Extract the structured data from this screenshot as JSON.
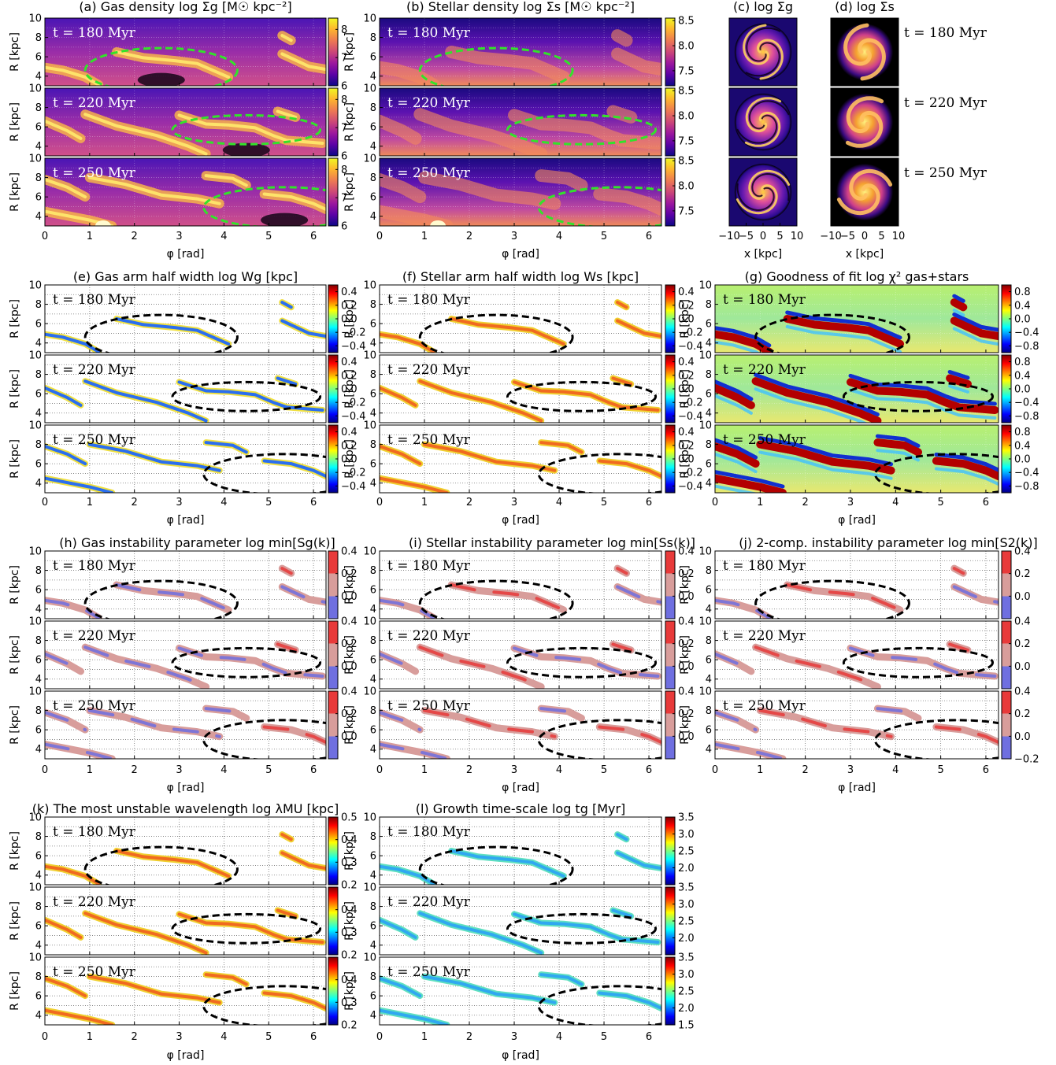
{
  "chart_data": {
    "type": "heatmap",
    "time_labels": [
      "t = 180 Myr",
      "t = 220 Myr",
      "t = 250 Myr"
    ],
    "phi_axis": {
      "label": "φ [rad]",
      "ticks": [
        "0",
        "1",
        "2",
        "3",
        "4",
        "5",
        "6"
      ],
      "range": [
        0,
        6.28
      ]
    },
    "R_axis": {
      "label": "R [kpc]",
      "ticks": [
        "4",
        "6",
        "8",
        "10"
      ],
      "range": [
        3,
        10
      ]
    },
    "xy_axis": {
      "label": "x [kpc]",
      "ticks": [
        "−10",
        "−5",
        "0",
        "5",
        "10"
      ]
    },
    "panels": [
      {
        "id": "a",
        "title": "(a) Gas density log Σg [M☉ kpc⁻²]",
        "style": "gas",
        "ellipse": "lime",
        "cbar": {
          "cmap": "plasma",
          "ticks": [
            "6",
            "7",
            "8"
          ],
          "range": [
            6,
            8.4
          ]
        }
      },
      {
        "id": "b",
        "title": "(b) Stellar density log Σs [M☉ kpc⁻²]",
        "style": "star",
        "ellipse": "lime",
        "cbar": {
          "cmap": "plasma",
          "ticks": [
            "7.5",
            "8.0",
            "8.5"
          ],
          "range": [
            7.2,
            8.55
          ]
        }
      },
      {
        "id": "c",
        "title": "(c) log Σg",
        "style": "disk_gas"
      },
      {
        "id": "d",
        "title": "(d) log Σs",
        "style": "disk_star"
      },
      {
        "id": "e",
        "title": "(e) Gas arm half width log Wg [kpc]",
        "style": "arm_jet",
        "ellipse": "black",
        "cbar": {
          "cmap": "jet",
          "ticks": [
            "−0.4",
            "−0.2",
            "0.0",
            "0.2",
            "0.4"
          ],
          "range": [
            -0.5,
            0.5
          ]
        }
      },
      {
        "id": "f",
        "title": "(f) Stellar arm half width log Ws [kpc]",
        "style": "arm_jet",
        "ellipse": "black",
        "cbar": {
          "cmap": "jet",
          "ticks": [
            "−0.4",
            "−0.2",
            "0.0",
            "0.2",
            "0.4"
          ],
          "range": [
            -0.5,
            0.5
          ]
        }
      },
      {
        "id": "g",
        "title": "(g) Goodness of fit log χ² gas+stars",
        "style": "chi",
        "ellipse": "black",
        "cbar": {
          "cmap": "jet",
          "ticks": [
            "−0.8",
            "−0.4",
            "0.0",
            "0.4",
            "0.8"
          ],
          "range": [
            -1,
            1
          ]
        }
      },
      {
        "id": "h",
        "title": "(h) Gas instability parameter log min[Sg(k)]",
        "style": "arm_disc",
        "ellipse": "black",
        "cbar": {
          "cmap": "discrete",
          "ticks": [
            "0.0",
            "0.2",
            "0.4"
          ],
          "range": [
            -0.2,
            0.4
          ]
        }
      },
      {
        "id": "i",
        "title": "(i) Stellar instability parameter log min[Ss(k)]",
        "style": "arm_disc",
        "ellipse": "black",
        "cbar": {
          "cmap": "discrete",
          "ticks": [
            "0.0",
            "0.2",
            "0.4"
          ],
          "range": [
            -0.2,
            0.4
          ]
        }
      },
      {
        "id": "j",
        "title": "(j) 2-comp. instability parameter log min[S2(k)]",
        "style": "arm_disc",
        "ellipse": "black",
        "cbar": {
          "cmap": "discrete",
          "ticks": [
            "0.0",
            "0.2",
            "0.4"
          ],
          "ticks_bottom": [
            "−0.2",
            "0.0",
            "0.2",
            "0.4"
          ],
          "range": [
            -0.2,
            0.4
          ]
        }
      },
      {
        "id": "k",
        "title": "(k) The most unstable wavelength log λMU [kpc]",
        "style": "arm_jet",
        "ellipse": "black",
        "cbar": {
          "cmap": "jet",
          "ticks": [
            "0.2",
            "0.3",
            "0.4",
            "0.5"
          ],
          "ticks_mid": [
            "0.2",
            "0.3",
            "0.4"
          ],
          "range": [
            0.2,
            0.5
          ]
        }
      },
      {
        "id": "l",
        "title": "(l) Growth time-scale log tg [Myr]",
        "style": "arm_jet",
        "ellipse": "black",
        "cbar": {
          "cmap": "jet",
          "ticks": [
            "2.0",
            "2.5",
            "3.0",
            "3.5"
          ],
          "ticks_bottom": [
            "1.5",
            "2.0",
            "2.5",
            "3.0",
            "3.5"
          ],
          "range": [
            1.5,
            3.5
          ]
        }
      }
    ],
    "ellipses_phi_R": [
      {
        "cx": 2.6,
        "cy": 4.6,
        "rx": 1.7,
        "ry": 2.3
      },
      {
        "cx": 4.5,
        "cy": 5.7,
        "rx": 1.65,
        "ry": 1.5
      },
      {
        "cx": 5.35,
        "cy": 4.9,
        "rx": 1.8,
        "ry": 2.1
      }
    ]
  }
}
